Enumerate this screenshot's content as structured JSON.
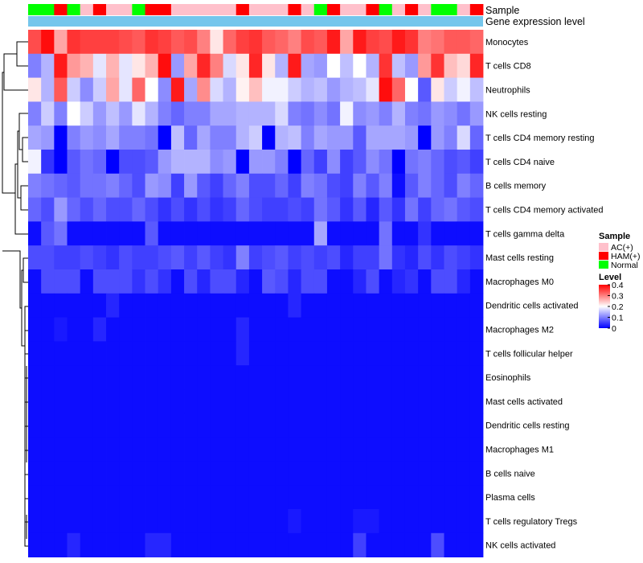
{
  "chart_data": {
    "type": "heatmap",
    "title": "",
    "annotations": {
      "sample_label": "Sample",
      "expression_label": "Gene expression level"
    },
    "columns_sample": [
      "Normal",
      "Normal",
      "HAM(+)",
      "Normal",
      "AC(+)",
      "HAM(+)",
      "AC(+)",
      "AC(+)",
      "Normal",
      "HAM(+)",
      "HAM(+)",
      "AC(+)",
      "AC(+)",
      "AC(+)",
      "AC(+)",
      "AC(+)",
      "HAM(+)",
      "AC(+)",
      "AC(+)",
      "AC(+)",
      "HAM(+)",
      "AC(+)",
      "Normal",
      "HAM(+)",
      "AC(+)",
      "AC(+)",
      "HAM(+)",
      "Normal",
      "AC(+)",
      "HAM(+)",
      "AC(+)",
      "Normal",
      "Normal",
      "AC(+)",
      "HAM(+)"
    ],
    "rows": [
      "Monocytes",
      "T cells CD8",
      "Neutrophils",
      "NK cells resting",
      "T cells CD4 memory resting",
      "T cells CD4 naive",
      "B cells memory",
      "T cells CD4 memory activated",
      "T cells gamma delta",
      "Mast cells resting",
      "Macrophages M0",
      "Dendritic cells activated",
      "Macrophages M2",
      "T cells follicular helper",
      "Eosinophils",
      "Mast cells activated",
      "Dendritic cells resting",
      "Macrophages M1",
      "B cells naive",
      "Plasma cells",
      "T cells regulatory  Tregs",
      "NK cells activated"
    ],
    "values": [
      [
        0.34,
        0.39,
        0.27,
        0.36,
        0.35,
        0.35,
        0.35,
        0.34,
        0.33,
        0.36,
        0.35,
        0.33,
        0.34,
        0.3,
        0.22,
        0.32,
        0.35,
        0.36,
        0.33,
        0.32,
        0.3,
        0.34,
        0.33,
        0.38,
        0.27,
        0.38,
        0.35,
        0.34,
        0.38,
        0.36,
        0.3,
        0.31,
        0.33,
        0.33,
        0.32
      ],
      [
        0.1,
        0.14,
        0.38,
        0.28,
        0.26,
        0.18,
        0.26,
        0.18,
        0.22,
        0.26,
        0.39,
        0.12,
        0.27,
        0.37,
        0.3,
        0.17,
        0.22,
        0.37,
        0.22,
        0.14,
        0.38,
        0.13,
        0.12,
        0.2,
        0.15,
        0.2,
        0.14,
        0.36,
        0.15,
        0.12,
        0.28,
        0.36,
        0.25,
        0.23,
        0.37
      ],
      [
        0.22,
        0.14,
        0.33,
        0.16,
        0.11,
        0.16,
        0.27,
        0.18,
        0.32,
        0.2,
        0.11,
        0.38,
        0.13,
        0.29,
        0.17,
        0.14,
        0.21,
        0.25,
        0.19,
        0.19,
        0.16,
        0.14,
        0.15,
        0.12,
        0.14,
        0.15,
        0.18,
        0.39,
        0.32,
        0.2,
        0.07,
        0.22,
        0.16,
        0.19,
        0.15
      ],
      [
        0.1,
        0.16,
        0.1,
        0.2,
        0.16,
        0.12,
        0.15,
        0.12,
        0.18,
        0.14,
        0.1,
        0.08,
        0.1,
        0.1,
        0.13,
        0.13,
        0.14,
        0.14,
        0.14,
        0.17,
        0.1,
        0.09,
        0.11,
        0.09,
        0.19,
        0.11,
        0.12,
        0.1,
        0.14,
        0.1,
        0.09,
        0.12,
        0.11,
        0.09,
        0.12
      ],
      [
        0.13,
        0.12,
        0.0,
        0.1,
        0.12,
        0.11,
        0.13,
        0.1,
        0.1,
        0.09,
        0.0,
        0.15,
        0.08,
        0.13,
        0.1,
        0.1,
        0.14,
        0.16,
        0.0,
        0.14,
        0.15,
        0.1,
        0.13,
        0.12,
        0.12,
        0.07,
        0.13,
        0.13,
        0.13,
        0.12,
        0.0,
        0.12,
        0.1,
        0.17,
        0.08
      ],
      [
        0.19,
        0.04,
        0.0,
        0.07,
        0.09,
        0.08,
        0.0,
        0.06,
        0.06,
        0.07,
        0.12,
        0.14,
        0.14,
        0.14,
        0.11,
        0.12,
        0.0,
        0.12,
        0.12,
        0.1,
        0.0,
        0.08,
        0.05,
        0.11,
        0.05,
        0.07,
        0.11,
        0.09,
        0.0,
        0.09,
        0.1,
        0.08,
        0.06,
        0.07,
        0.05
      ],
      [
        0.1,
        0.09,
        0.08,
        0.07,
        0.09,
        0.09,
        0.1,
        0.08,
        0.06,
        0.12,
        0.11,
        0.05,
        0.12,
        0.07,
        0.05,
        0.08,
        0.1,
        0.06,
        0.06,
        0.08,
        0.05,
        0.1,
        0.09,
        0.06,
        0.05,
        0.1,
        0.07,
        0.1,
        0.01,
        0.07,
        0.1,
        0.08,
        0.06,
        0.1,
        0.08
      ],
      [
        0.08,
        0.06,
        0.12,
        0.08,
        0.06,
        0.08,
        0.06,
        0.06,
        0.08,
        0.06,
        0.04,
        0.06,
        0.04,
        0.06,
        0.04,
        0.05,
        0.08,
        0.06,
        0.05,
        0.05,
        0.06,
        0.05,
        0.09,
        0.07,
        0.04,
        0.07,
        0.03,
        0.07,
        0.04,
        0.09,
        0.05,
        0.08,
        0.09,
        0.07,
        0.06
      ],
      [
        0.01,
        0.07,
        0.09,
        0.01,
        0.01,
        0.01,
        0.01,
        0.01,
        0.01,
        0.07,
        0.01,
        0.01,
        0.01,
        0.01,
        0.01,
        0.01,
        0.01,
        0.01,
        0.01,
        0.01,
        0.01,
        0.01,
        0.13,
        0.01,
        0.01,
        0.01,
        0.01,
        0.09,
        0.01,
        0.01,
        0.04,
        0.01,
        0.01,
        0.01,
        0.01
      ],
      [
        0.06,
        0.06,
        0.05,
        0.05,
        0.06,
        0.05,
        0.04,
        0.06,
        0.05,
        0.05,
        0.06,
        0.07,
        0.05,
        0.07,
        0.05,
        0.04,
        0.1,
        0.05,
        0.06,
        0.07,
        0.05,
        0.06,
        0.05,
        0.06,
        0.03,
        0.05,
        0.05,
        0.09,
        0.04,
        0.03,
        0.06,
        0.04,
        0.06,
        0.05,
        0.04
      ],
      [
        0.01,
        0.06,
        0.06,
        0.06,
        0.01,
        0.06,
        0.06,
        0.06,
        0.04,
        0.06,
        0.04,
        0.01,
        0.06,
        0.03,
        0.06,
        0.06,
        0.03,
        0.01,
        0.07,
        0.06,
        0.03,
        0.06,
        0.06,
        0.01,
        0.01,
        0.03,
        0.06,
        0.01,
        0.03,
        0.04,
        0.01,
        0.06,
        0.06,
        0.03,
        0.01
      ],
      [
        0.01,
        0.01,
        0.01,
        0.01,
        0.01,
        0.01,
        0.03,
        0.01,
        0.01,
        0.01,
        0.01,
        0.01,
        0.01,
        0.01,
        0.01,
        0.01,
        0.01,
        0.01,
        0.01,
        0.01,
        0.03,
        0.01,
        0.01,
        0.01,
        0.01,
        0.01,
        0.01,
        0.01,
        0.01,
        0.01,
        0.01,
        0.01,
        0.01,
        0.01,
        0.01
      ],
      [
        0.01,
        0.01,
        0.02,
        0.01,
        0.01,
        0.03,
        0.01,
        0.01,
        0.01,
        0.01,
        0.01,
        0.01,
        0.01,
        0.01,
        0.01,
        0.01,
        0.03,
        0.01,
        0.01,
        0.01,
        0.01,
        0.01,
        0.01,
        0.01,
        0.01,
        0.01,
        0.01,
        0.01,
        0.01,
        0.01,
        0.01,
        0.01,
        0.01,
        0.01,
        0.01
      ],
      [
        0.01,
        0.01,
        0.01,
        0.01,
        0.01,
        0.01,
        0.01,
        0.01,
        0.01,
        0.01,
        0.01,
        0.01,
        0.01,
        0.01,
        0.01,
        0.01,
        0.03,
        0.01,
        0.01,
        0.01,
        0.01,
        0.01,
        0.01,
        0.01,
        0.01,
        0.01,
        0.01,
        0.01,
        0.01,
        0.01,
        0.01,
        0.01,
        0.01,
        0.01,
        0.01
      ],
      [
        0.01,
        0.01,
        0.01,
        0.01,
        0.01,
        0.01,
        0.01,
        0.01,
        0.01,
        0.01,
        0.01,
        0.01,
        0.01,
        0.01,
        0.01,
        0.01,
        0.01,
        0.01,
        0.01,
        0.01,
        0.01,
        0.01,
        0.01,
        0.01,
        0.01,
        0.01,
        0.01,
        0.01,
        0.01,
        0.01,
        0.01,
        0.01,
        0.01,
        0.01,
        0.01
      ],
      [
        0.01,
        0.01,
        0.01,
        0.01,
        0.01,
        0.01,
        0.01,
        0.01,
        0.01,
        0.01,
        0.01,
        0.01,
        0.01,
        0.01,
        0.01,
        0.01,
        0.01,
        0.01,
        0.01,
        0.01,
        0.01,
        0.01,
        0.01,
        0.01,
        0.01,
        0.01,
        0.01,
        0.01,
        0.01,
        0.01,
        0.01,
        0.01,
        0.01,
        0.01,
        0.01
      ],
      [
        0.01,
        0.01,
        0.01,
        0.01,
        0.01,
        0.01,
        0.01,
        0.01,
        0.01,
        0.01,
        0.01,
        0.01,
        0.01,
        0.01,
        0.01,
        0.01,
        0.01,
        0.01,
        0.01,
        0.01,
        0.01,
        0.01,
        0.01,
        0.01,
        0.01,
        0.01,
        0.01,
        0.01,
        0.01,
        0.01,
        0.01,
        0.01,
        0.01,
        0.01,
        0.01
      ],
      [
        0.01,
        0.01,
        0.01,
        0.01,
        0.01,
        0.01,
        0.01,
        0.01,
        0.01,
        0.01,
        0.01,
        0.01,
        0.01,
        0.01,
        0.01,
        0.01,
        0.01,
        0.01,
        0.01,
        0.01,
        0.01,
        0.01,
        0.01,
        0.01,
        0.01,
        0.01,
        0.01,
        0.01,
        0.01,
        0.01,
        0.01,
        0.01,
        0.01,
        0.01,
        0.01
      ],
      [
        0.01,
        0.01,
        0.01,
        0.01,
        0.01,
        0.01,
        0.01,
        0.01,
        0.01,
        0.01,
        0.01,
        0.01,
        0.01,
        0.01,
        0.01,
        0.01,
        0.01,
        0.01,
        0.01,
        0.01,
        0.01,
        0.01,
        0.01,
        0.01,
        0.01,
        0.01,
        0.01,
        0.01,
        0.01,
        0.01,
        0.01,
        0.01,
        0.01,
        0.01,
        0.01
      ],
      [
        0.01,
        0.01,
        0.01,
        0.01,
        0.01,
        0.01,
        0.01,
        0.01,
        0.01,
        0.01,
        0.01,
        0.01,
        0.01,
        0.01,
        0.01,
        0.01,
        0.01,
        0.01,
        0.01,
        0.01,
        0.01,
        0.01,
        0.01,
        0.01,
        0.01,
        0.01,
        0.01,
        0.01,
        0.01,
        0.01,
        0.01,
        0.01,
        0.01,
        0.01,
        0.01
      ],
      [
        0.01,
        0.01,
        0.01,
        0.01,
        0.01,
        0.01,
        0.01,
        0.01,
        0.01,
        0.01,
        0.01,
        0.01,
        0.01,
        0.01,
        0.01,
        0.01,
        0.01,
        0.01,
        0.01,
        0.01,
        0.02,
        0.01,
        0.01,
        0.01,
        0.01,
        0.02,
        0.02,
        0.01,
        0.01,
        0.01,
        0.01,
        0.01,
        0.01,
        0.01,
        0.01
      ],
      [
        0.01,
        0.01,
        0.01,
        0.03,
        0.01,
        0.01,
        0.01,
        0.01,
        0.01,
        0.03,
        0.03,
        0.01,
        0.01,
        0.01,
        0.01,
        0.01,
        0.01,
        0.01,
        0.01,
        0.01,
        0.01,
        0.01,
        0.01,
        0.01,
        0.01,
        0.05,
        0.01,
        0.01,
        0.01,
        0.01,
        0.01,
        0.06,
        0.01,
        0.01,
        0.01
      ]
    ],
    "color_scale": {
      "min": 0,
      "mid": 0.2,
      "max": 0.4,
      "low_color": "#0000ff",
      "mid_color": "#ffffff",
      "high_color": "#ff0000"
    },
    "expression_bar_color": "#75c6ec",
    "legends": {
      "sample": {
        "title": "Sample",
        "entries": [
          {
            "label": "AC(+)",
            "color": "#ffc0cb"
          },
          {
            "label": "HAM(+)",
            "color": "#ff0000"
          },
          {
            "label": "Normal",
            "color": "#00ff00"
          }
        ]
      },
      "level": {
        "title": "Level",
        "ticks": [
          "0.4",
          "0.3",
          "0.2",
          "0.1",
          "0"
        ]
      }
    },
    "dendrogram": "hierarchical clustering of rows (left)"
  }
}
